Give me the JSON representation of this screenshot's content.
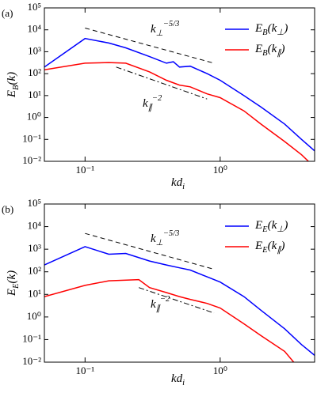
{
  "chart_data": [
    {
      "type": "line",
      "panel_label": "(a)",
      "xlabel": "kd_{i}",
      "ylabel": "E_{B}(k)",
      "xscale": "log",
      "yscale": "log",
      "xlim": [
        0.05,
        5
      ],
      "ylim": [
        0.01,
        100000
      ],
      "xticks": [
        {
          "value": 0.1,
          "label": "10⁻¹"
        },
        {
          "value": 1,
          "label": "10⁰"
        }
      ],
      "yticks": [
        {
          "value": 0.01,
          "label": "10⁻²"
        },
        {
          "value": 0.1,
          "label": "10⁻¹"
        },
        {
          "value": 1,
          "label": "10⁰"
        },
        {
          "value": 10,
          "label": "10¹"
        },
        {
          "value": 100,
          "label": "10²"
        },
        {
          "value": 1000,
          "label": "10³"
        },
        {
          "value": 10000,
          "label": "10⁴"
        },
        {
          "value": 100000,
          "label": "10⁵"
        }
      ],
      "legend": "upper right",
      "series": [
        {
          "name": "E_{B}(k_{⊥})",
          "color": "#0000ff",
          "x": [
            0.05,
            0.1,
            0.15,
            0.2,
            0.3,
            0.4,
            0.45,
            0.5,
            0.6,
            0.8,
            1,
            1.5,
            2,
            3,
            4,
            5
          ],
          "values": [
            200,
            4000,
            2500,
            1500,
            600,
            300,
            350,
            200,
            220,
            100,
            50,
            10,
            3,
            0.5,
            0.1,
            0.03
          ]
        },
        {
          "name": "E_{B}(k_{∥})",
          "color": "#ff0000",
          "x": [
            0.05,
            0.1,
            0.15,
            0.2,
            0.3,
            0.4,
            0.5,
            0.6,
            0.8,
            1,
            1.5,
            2,
            3,
            4,
            4.5
          ],
          "values": [
            150,
            300,
            320,
            300,
            120,
            50,
            30,
            25,
            12,
            8,
            2,
            0.5,
            0.08,
            0.02,
            0.01
          ]
        }
      ],
      "guides": [
        {
          "style": "dashed",
          "label": "k_{⊥}^{−5/3}",
          "x": [
            0.1,
            0.9
          ],
          "values": [
            12000,
            300
          ]
        },
        {
          "style": "dashdot",
          "label": "k_{∥}^{−2}",
          "x": [
            0.17,
            0.8
          ],
          "values": [
            200,
            7
          ]
        }
      ]
    },
    {
      "type": "line",
      "panel_label": "(b)",
      "xlabel": "kd_{i}",
      "ylabel": "E_{E}(k)",
      "xscale": "log",
      "yscale": "log",
      "xlim": [
        0.05,
        5
      ],
      "ylim": [
        0.01,
        100000
      ],
      "xticks": [
        {
          "value": 0.1,
          "label": "10⁻¹"
        },
        {
          "value": 1,
          "label": "10⁰"
        }
      ],
      "yticks": [
        {
          "value": 0.01,
          "label": "10⁻²"
        },
        {
          "value": 0.1,
          "label": "10⁻¹"
        },
        {
          "value": 1,
          "label": "10⁰"
        },
        {
          "value": 10,
          "label": "10¹"
        },
        {
          "value": 100,
          "label": "10²"
        },
        {
          "value": 1000,
          "label": "10³"
        },
        {
          "value": 10000,
          "label": "10⁴"
        },
        {
          "value": 100000,
          "label": "10⁵"
        }
      ],
      "legend": "upper right",
      "series": [
        {
          "name": "E_{E}(k_{⊥})",
          "color": "#0000ff",
          "x": [
            0.05,
            0.1,
            0.15,
            0.2,
            0.3,
            0.4,
            0.5,
            0.6,
            0.8,
            1,
            1.5,
            2,
            3,
            4,
            5
          ],
          "values": [
            200,
            1300,
            600,
            650,
            300,
            200,
            150,
            120,
            60,
            35,
            8,
            2,
            0.3,
            0.06,
            0.02
          ]
        },
        {
          "name": "E_{E}(k_{∥})",
          "color": "#ff0000",
          "x": [
            0.05,
            0.1,
            0.15,
            0.25,
            0.3,
            0.4,
            0.5,
            0.6,
            0.8,
            1,
            1.5,
            2,
            3,
            3.5
          ],
          "values": [
            8,
            25,
            40,
            45,
            20,
            12,
            8,
            6,
            4,
            2.5,
            0.5,
            0.15,
            0.03,
            0.01
          ]
        }
      ],
      "guides": [
        {
          "style": "dashed",
          "label": "k_{⊥}^{−5/3}",
          "x": [
            0.1,
            0.9
          ],
          "values": [
            5000,
            130
          ]
        },
        {
          "style": "dashdot",
          "label": "k_{∥}^{−2}",
          "x": [
            0.25,
            0.9
          ],
          "values": [
            20,
            1.5
          ]
        }
      ]
    }
  ]
}
